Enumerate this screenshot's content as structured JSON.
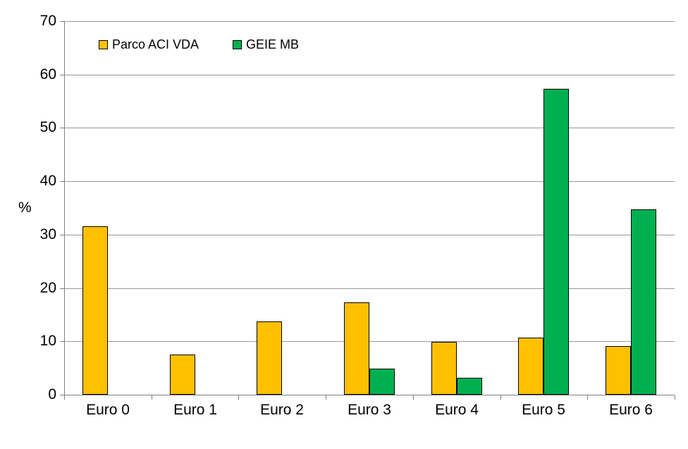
{
  "chart_data": {
    "type": "bar",
    "title": "",
    "categories": [
      "Euro 0",
      "Euro 1",
      "Euro 2",
      "Euro 3",
      "Euro 4",
      "Euro 5",
      "Euro 6"
    ],
    "series": [
      {
        "name": "Parco ACI VDA",
        "color": "#FFC000",
        "values": [
          31.6,
          7.5,
          13.7,
          17.3,
          9.9,
          10.7,
          9.1
        ]
      },
      {
        "name": "GEIE MB",
        "color": "#00B050",
        "values": [
          0,
          0,
          0,
          4.9,
          3.2,
          57.3,
          34.7
        ]
      }
    ],
    "xlabel": "",
    "ylabel": "%",
    "ylim": [
      0,
      70
    ],
    "ytick_step": 10,
    "grid": true,
    "legend_position": "top-left-inside",
    "bar_border_color": "#000000",
    "gridline_color": "#9a9a9a",
    "axis_color": "#808080"
  }
}
